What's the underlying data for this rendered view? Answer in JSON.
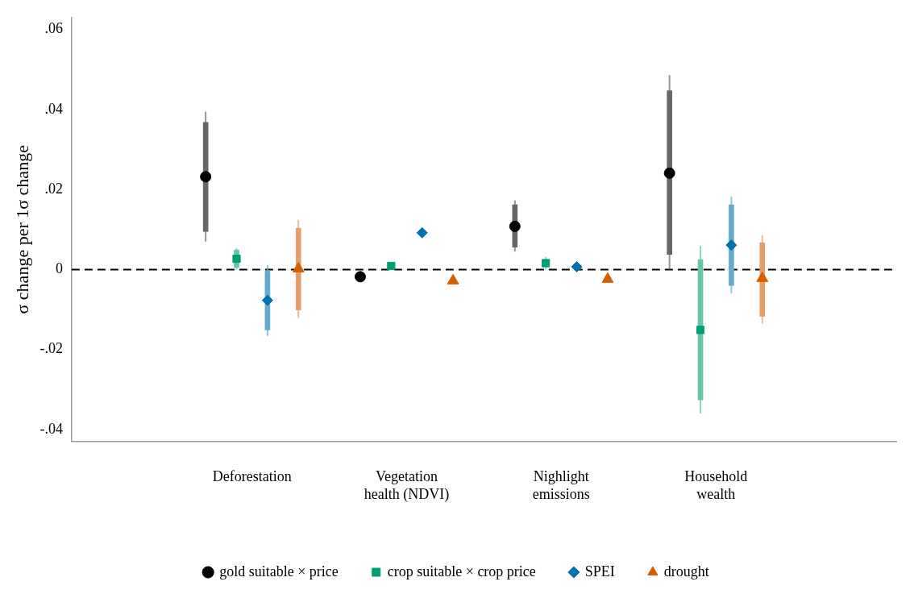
{
  "chart_data": {
    "type": "scatter",
    "ylabel": "σ change per 1σ change",
    "categories": [
      "Deforestation",
      "Vegetation health (NDVI)",
      "Nighlight emissions",
      "Household wealth"
    ],
    "ylim": [
      -0.043,
      0.063
    ],
    "yticks": [
      {
        "value": -0.04,
        "label": "-.04"
      },
      {
        "value": -0.02,
        "label": "-.02"
      },
      0,
      {
        "value": 0.02,
        "label": ".02"
      },
      {
        "value": 0.04,
        "label": ".04"
      },
      {
        "value": 0.06,
        "label": ".06"
      }
    ],
    "grid": false,
    "legend": "bottom",
    "ref_lines": [
      {
        "axis": "y",
        "value": 0,
        "color": "#000000",
        "line_style": "dashed"
      }
    ],
    "series": [
      {
        "name": "gold suitable × price",
        "color": "#000000",
        "marker": "circle",
        "values": [
          0.0232,
          -0.0018,
          0.0108,
          0.0241
        ],
        "errors": [
          [
            0.007,
            0.0395
          ],
          null,
          [
            0.0045,
            0.0173
          ],
          [
            0,
            0.0486
          ]
        ]
      },
      {
        "type": "bar",
        "color": "#666666",
        "base": [
          0.0095,
          null,
          0.0056,
          0.0038
        ],
        "values": [
          0.0273,
          null,
          0.0106,
          0.0409
        ]
      },
      {
        "name": "crop suitable × crop price",
        "color": "#009e73",
        "marker": "square",
        "values": [
          0.0027,
          0.0009,
          0.0016,
          -0.0151
        ],
        "errors": [
          [
            0,
            0.0054
          ],
          null,
          [
            0,
            0.0032
          ],
          [
            -0.036,
            0.0059
          ]
        ]
      },
      {
        "type": "bar",
        "color": "#66c5ab",
        "base": [
          0.0005,
          null,
          null,
          -0.0326
        ],
        "values": [
          0.0044,
          null,
          null,
          0.0351
        ]
      },
      {
        "name": "SPEI",
        "color": "#0072b2",
        "marker": "diamond",
        "values": [
          -0.0077,
          0.0092,
          0.0007,
          0.0061
        ],
        "errors": [
          [
            -0.0166,
            0.0011
          ],
          null,
          null,
          [
            -0.0059,
            0.0182
          ]
        ]
      },
      {
        "type": "bar",
        "color": "#66aad1",
        "base": [
          -0.0151,
          null,
          null,
          -0.004
        ],
        "values": [
          0.0147,
          null,
          null,
          0.0202
        ]
      },
      {
        "name": "drought",
        "color": "#d55e00",
        "marker": "triangle",
        "values": [
          0.0002,
          -0.0028,
          -0.0024,
          -0.0022
        ],
        "errors": [
          [
            -0.0121,
            0.0124
          ],
          null,
          null,
          [
            -0.0135,
            0.0086
          ]
        ]
      },
      {
        "type": "bar",
        "color": "#e69e66",
        "base": [
          -0.0101,
          null,
          null,
          -0.0117
        ],
        "values": [
          0.0204,
          null,
          null,
          0.0184
        ]
      }
    ]
  }
}
